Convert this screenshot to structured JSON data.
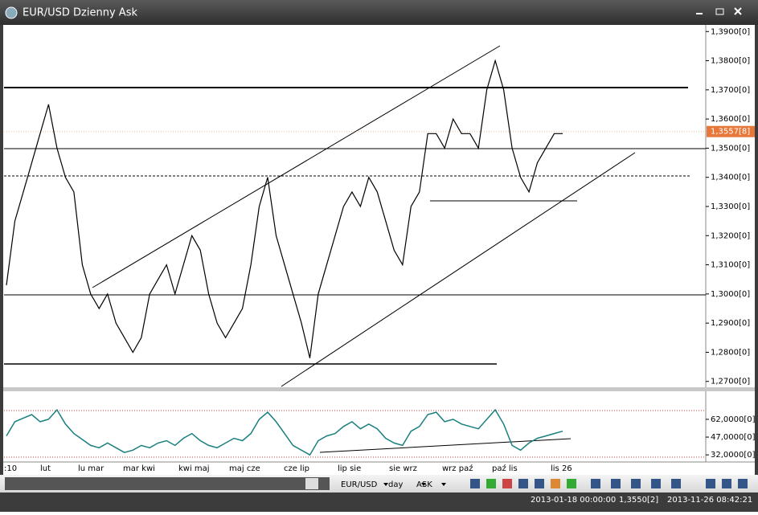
{
  "window": {
    "title": "EUR/USD Dzienny Ask"
  },
  "chart_data": [
    {
      "type": "line",
      "color": "#000000",
      "ylim": [
        1.268,
        1.392
      ],
      "yticks": [
        {
          "value": 1.39,
          "label": "1,3900[0]"
        },
        {
          "value": 1.38,
          "label": "1,3800[0]"
        },
        {
          "value": 1.37,
          "label": "1,3700[0]"
        },
        {
          "value": 1.36,
          "label": "1,3600[0]"
        },
        {
          "value": 1.35,
          "label": "1,3500[0]"
        },
        {
          "value": 1.34,
          "label": "1,3400[0]"
        },
        {
          "value": 1.33,
          "label": "1,3300[0]"
        },
        {
          "value": 1.32,
          "label": "1,3200[0]"
        },
        {
          "value": 1.31,
          "label": "1,3100[0]"
        },
        {
          "value": 1.3,
          "label": "1,3000[0]"
        },
        {
          "value": 1.29,
          "label": "1,2900[0]"
        },
        {
          "value": 1.28,
          "label": "1,2800[0]"
        },
        {
          "value": 1.27,
          "label": "1,2700[0]"
        }
      ],
      "current_price": {
        "value": 1.3557,
        "label": "1,3557[8]"
      },
      "values": [
        1.303,
        1.325,
        1.335,
        1.345,
        1.355,
        1.365,
        1.35,
        1.34,
        1.335,
        1.31,
        1.3,
        1.295,
        1.3,
        1.29,
        1.285,
        1.28,
        1.285,
        1.3,
        1.305,
        1.31,
        1.3,
        1.31,
        1.32,
        1.315,
        1.3,
        1.29,
        1.285,
        1.29,
        1.295,
        1.31,
        1.33,
        1.34,
        1.32,
        1.31,
        1.3,
        1.29,
        1.278,
        1.3,
        1.31,
        1.32,
        1.33,
        1.335,
        1.33,
        1.34,
        1.335,
        1.325,
        1.315,
        1.31,
        1.33,
        1.335,
        1.355,
        1.355,
        1.35,
        1.36,
        1.355,
        1.355,
        1.35,
        1.37,
        1.38,
        1.37,
        1.35,
        1.34,
        1.335,
        1.345,
        1.35,
        1.355,
        1.355
      ]
    },
    {
      "type": "line",
      "color": "#1a7f7f",
      "ylim": [
        26,
        85
      ],
      "yticks": [
        {
          "value": 62,
          "label": "62,0000[0]"
        },
        {
          "value": 47,
          "label": "47,0000[0]"
        },
        {
          "value": 32,
          "label": "32,0000[0]"
        }
      ],
      "values": [
        48,
        60,
        63,
        66,
        60,
        62,
        70,
        58,
        50,
        45,
        40,
        38,
        42,
        38,
        34,
        36,
        40,
        38,
        42,
        44,
        40,
        46,
        50,
        44,
        40,
        38,
        42,
        46,
        44,
        50,
        62,
        68,
        60,
        50,
        40,
        36,
        32,
        44,
        48,
        50,
        56,
        60,
        54,
        58,
        54,
        46,
        42,
        40,
        52,
        56,
        66,
        68,
        60,
        62,
        58,
        56,
        54,
        62,
        70,
        58,
        40,
        36,
        42,
        46,
        48,
        50,
        52
      ]
    }
  ],
  "x_labels": [
    ":10",
    "lut",
    "lu mar",
    "mar kwi",
    "kwi maj",
    "maj cze",
    "cze lip",
    "lip sie",
    "sie wrz",
    "wrz paź",
    "paź lis",
    "lis 26"
  ],
  "toolbar": {
    "symbol": "EUR/USD",
    "period": "day",
    "side": "ASK"
  },
  "status": {
    "date": "2013-01-18 00:00:00",
    "price": "1,3550[2]",
    "time": "2013-11-26 08:42:21"
  }
}
